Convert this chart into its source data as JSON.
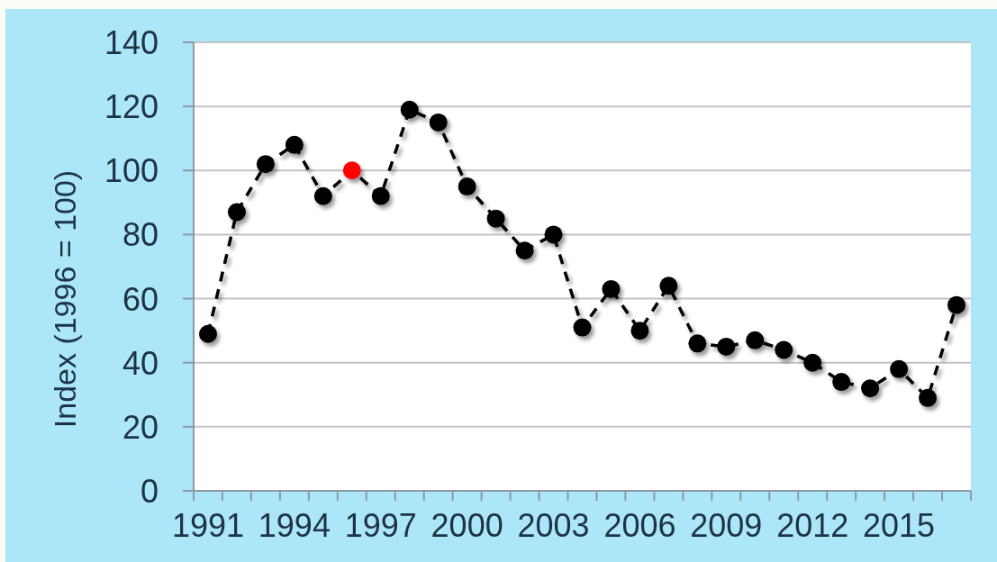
{
  "chart_data": {
    "type": "line",
    "ylabel": "Index (1996 = 100)",
    "categories": [
      "1991",
      null,
      null,
      "1994",
      null,
      null,
      "1997",
      null,
      null,
      "2000",
      null,
      null,
      "2003",
      null,
      null,
      "2006",
      null,
      null,
      "2009",
      null,
      null,
      "2012",
      null,
      null,
      "2015",
      null,
      null
    ],
    "series": [
      {
        "color": "#000000",
        "colors": [
          "#000000",
          "#000000",
          "#000000",
          "#000000",
          "#000000",
          "#ff0000",
          "#000000",
          "#000000",
          "#000000",
          "#000000",
          "#000000",
          "#000000",
          "#000000",
          "#000000",
          "#000000",
          "#000000",
          "#000000",
          "#000000",
          "#000000",
          "#000000",
          "#000000",
          "#000000",
          "#000000",
          "#000000",
          "#000000",
          "#000000",
          "#000000"
        ],
        "values": [
          49,
          87,
          102,
          108,
          92,
          100,
          92,
          119,
          115,
          95,
          85,
          75,
          80,
          51,
          63,
          50,
          64,
          46,
          45,
          47,
          44,
          40,
          34,
          32,
          38,
          29,
          58
        ]
      }
    ],
    "ylim": [
      0,
      140
    ],
    "yticks": [
      0,
      20,
      40,
      60,
      80,
      100,
      120,
      140
    ],
    "grid": "y",
    "marker": "circle",
    "line_style": "dashed"
  }
}
